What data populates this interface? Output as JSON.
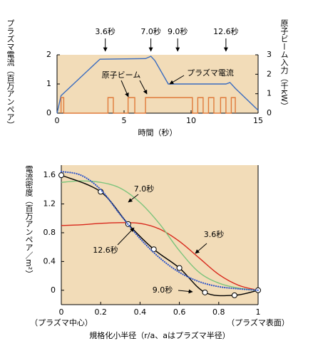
{
  "chart_data": [
    {
      "type": "line",
      "xlabel": "時間（秒）",
      "ylabel": "プラズマ電流（百万アンペア）",
      "y2label": "原子ビーム入力（千kW）",
      "xlim": [
        0,
        15
      ],
      "xticks": [
        0,
        5,
        10,
        15
      ],
      "ylim": [
        0,
        2
      ],
      "yticks": [
        0,
        1,
        2
      ],
      "y2lim": [
        0,
        3
      ],
      "y2ticks": [
        0,
        1,
        2,
        3
      ],
      "background": "#f2dcb8",
      "markers_at": [
        {
          "x": 3.6,
          "label": "3.6秒"
        },
        {
          "x": 7.0,
          "label": "7.0秒"
        },
        {
          "x": 9.0,
          "label": "9.0秒"
        },
        {
          "x": 12.6,
          "label": "12.6秒"
        }
      ],
      "series": [
        {
          "name": "プラズマ電流",
          "color": "#3a6cc0",
          "x": [
            0,
            0.3,
            3.2,
            6.6,
            7.0,
            7.3,
            8.3,
            12.6,
            12.9,
            13.3,
            15
          ],
          "values": [
            0,
            0.6,
            1.85,
            1.87,
            1.95,
            1.8,
            1.0,
            1.0,
            1.05,
            0.85,
            0.1
          ]
        },
        {
          "name": "原子ビーム",
          "color": "#e07a3a",
          "axis": "y2",
          "x": [
            0.3,
            0.3,
            0.5,
            0.5,
            3.8,
            3.8,
            4.2,
            4.2,
            5.3,
            5.3,
            5.8,
            5.8,
            6.6,
            6.6,
            10.1,
            10.1,
            10.5,
            10.5,
            10.9,
            10.9,
            11.3,
            11.3,
            11.7,
            11.7,
            12.2,
            12.2,
            12.6,
            12.6,
            13.0,
            13.0,
            13.3,
            13.3
          ],
          "values": [
            0,
            0.8,
            0.8,
            0,
            0,
            0.8,
            0.8,
            0,
            0,
            0.8,
            0.8,
            0,
            0,
            0.8,
            0.8,
            0,
            0,
            0.8,
            0.8,
            0,
            0,
            0.8,
            0.8,
            0,
            0,
            0.8,
            0.8,
            0,
            0,
            0.8,
            0.8,
            0
          ]
        }
      ]
    },
    {
      "type": "line",
      "xlabel": "規格化小半径（r/a、aはプラズマ半径）",
      "ylabel": "電流密度（百万アンペア／m²）",
      "xlim": [
        0,
        1
      ],
      "xticks": [
        0,
        0.2,
        0.4,
        0.6,
        0.8,
        1
      ],
      "ylim": [
        -0.2,
        1.74
      ],
      "yticks": [
        0,
        0.4,
        0.8,
        1.2,
        1.6
      ],
      "background": "#f2dcb8",
      "smooth": true,
      "x_end_labels": [
        "（プラズマ中心）",
        "（プラズマ表面）"
      ],
      "x": [
        0,
        0.1,
        0.2,
        0.3,
        0.4,
        0.5,
        0.6,
        0.7,
        0.8,
        0.9,
        1.0
      ],
      "series": [
        {
          "name": "3.6秒",
          "color": "#d8281c",
          "values": [
            0.9,
            0.91,
            0.93,
            0.94,
            0.93,
            0.85,
            0.68,
            0.45,
            0.22,
            0.07,
            0.0
          ]
        },
        {
          "name": "7.0秒",
          "color": "#7cc47c",
          "values": [
            1.5,
            1.52,
            1.5,
            1.42,
            1.22,
            0.92,
            0.55,
            0.25,
            0.1,
            0.03,
            0.0
          ]
        },
        {
          "name": "9.0秒",
          "color": "#000000",
          "markers": true,
          "x": [
            0,
            0.2,
            0.34,
            0.47,
            0.6,
            0.73,
            0.88,
            1.0
          ],
          "values": [
            1.6,
            1.37,
            0.92,
            0.57,
            0.31,
            -0.03,
            -0.07,
            0.0
          ]
        },
        {
          "name": "12.6秒",
          "color": "#2f55c8",
          "dash": "dotted",
          "values": [
            1.65,
            1.6,
            1.4,
            1.05,
            0.72,
            0.45,
            0.25,
            0.12,
            0.05,
            0.02,
            0.0
          ]
        }
      ]
    }
  ]
}
